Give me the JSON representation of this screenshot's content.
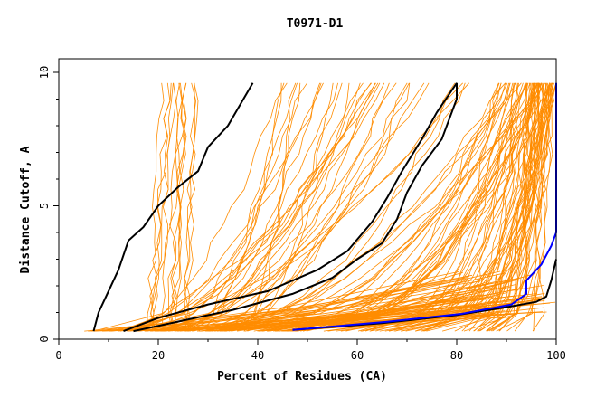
{
  "chart_data": {
    "type": "line",
    "title": "T0971-D1",
    "xlabel": "Percent of Residues (CA)",
    "ylabel": "Distance Cutoff, A",
    "xlim": [
      0,
      100
    ],
    "ylim": [
      0,
      10
    ],
    "x_ticks": [
      "0",
      "20",
      "40",
      "60",
      "80",
      "100"
    ],
    "y_ticks": [
      "0",
      "5",
      "10"
    ],
    "grid": false,
    "legend": "none",
    "colors": {
      "background_models": "#ff8c00",
      "highlight": "#000000",
      "best": "#0000ff"
    },
    "series": [
      {
        "role": "highlight",
        "points": [
          [
            7,
            0.3
          ],
          [
            8,
            1.0
          ],
          [
            10,
            1.8
          ],
          [
            12,
            2.6
          ],
          [
            14,
            3.7
          ],
          [
            17,
            4.2
          ],
          [
            20,
            5.0
          ],
          [
            24,
            5.7
          ],
          [
            28,
            6.3
          ],
          [
            30,
            7.2
          ],
          [
            34,
            8.0
          ],
          [
            39,
            9.6
          ]
        ]
      },
      {
        "role": "highlight",
        "points": [
          [
            13,
            0.3
          ],
          [
            20,
            0.8
          ],
          [
            30,
            1.3
          ],
          [
            42,
            1.8
          ],
          [
            52,
            2.6
          ],
          [
            58,
            3.3
          ],
          [
            63,
            4.4
          ],
          [
            66,
            5.3
          ],
          [
            69,
            6.3
          ],
          [
            73,
            7.5
          ],
          [
            76,
            8.5
          ],
          [
            80,
            9.6
          ]
        ]
      },
      {
        "role": "highlight",
        "points": [
          [
            15,
            0.3
          ],
          [
            25,
            0.7
          ],
          [
            35,
            1.1
          ],
          [
            47,
            1.7
          ],
          [
            55,
            2.3
          ],
          [
            60,
            3.0
          ],
          [
            65,
            3.6
          ],
          [
            68,
            4.5
          ],
          [
            70,
            5.5
          ],
          [
            73,
            6.5
          ],
          [
            77,
            7.5
          ],
          [
            80,
            9.0
          ],
          [
            80,
            9.6
          ]
        ]
      },
      {
        "role": "highlight",
        "points": [
          [
            47,
            0.35
          ],
          [
            65,
            0.6
          ],
          [
            80,
            0.9
          ],
          [
            90,
            1.2
          ],
          [
            96,
            1.4
          ],
          [
            98,
            1.6
          ],
          [
            99,
            2.2
          ],
          [
            100,
            3.0
          ]
        ]
      },
      {
        "role": "best",
        "points": [
          [
            47,
            0.35
          ],
          [
            66,
            0.65
          ],
          [
            81,
            0.95
          ],
          [
            91,
            1.3
          ],
          [
            94,
            1.7
          ],
          [
            94,
            2.2
          ],
          [
            97,
            2.8
          ],
          [
            99,
            3.5
          ],
          [
            100,
            4.0
          ],
          [
            100,
            9.6
          ]
        ]
      }
    ]
  }
}
